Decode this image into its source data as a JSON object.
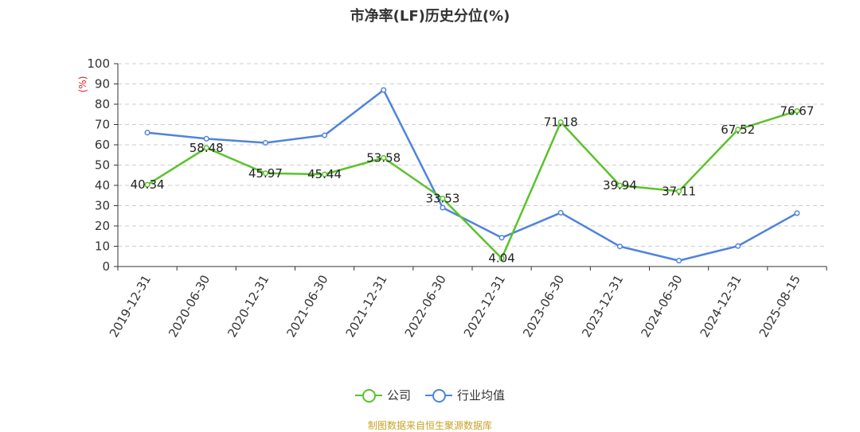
{
  "chart_data": {
    "type": "line",
    "title": "市净率(LF)历史分位(%)",
    "ylabel": "(%)",
    "ylim": [
      0,
      100
    ],
    "yticks": [
      0,
      10,
      20,
      30,
      40,
      50,
      60,
      70,
      80,
      90,
      100
    ],
    "categories": [
      "2019-12-31",
      "2020-06-30",
      "2020-12-31",
      "2021-06-30",
      "2021-12-31",
      "2022-06-30",
      "2022-12-31",
      "2023-06-30",
      "2023-12-31",
      "2024-06-30",
      "2024-12-31",
      "2025-08-15"
    ],
    "grid": true,
    "legend_position": "bottom",
    "series": [
      {
        "name": "公司",
        "color": "#5ac32b",
        "values": [
          40.34,
          58.48,
          45.97,
          45.44,
          53.58,
          33.53,
          4.04,
          71.18,
          39.94,
          37.11,
          67.52,
          76.67
        ],
        "labels": [
          "40.34",
          "58.48",
          "45.97",
          "45.44",
          "53.58",
          "33.53",
          "4.04",
          "71.18",
          "39.94",
          "37.11",
          "67.52",
          "76.67"
        ]
      },
      {
        "name": "行业均值",
        "color": "#5083db",
        "values": [
          66.0,
          63.0,
          61.0,
          64.7,
          87.0,
          29.0,
          14.2,
          26.5,
          9.9,
          2.9,
          10.1,
          26.3
        ]
      }
    ]
  },
  "source_text": "制图数据来自恒生聚源数据库"
}
